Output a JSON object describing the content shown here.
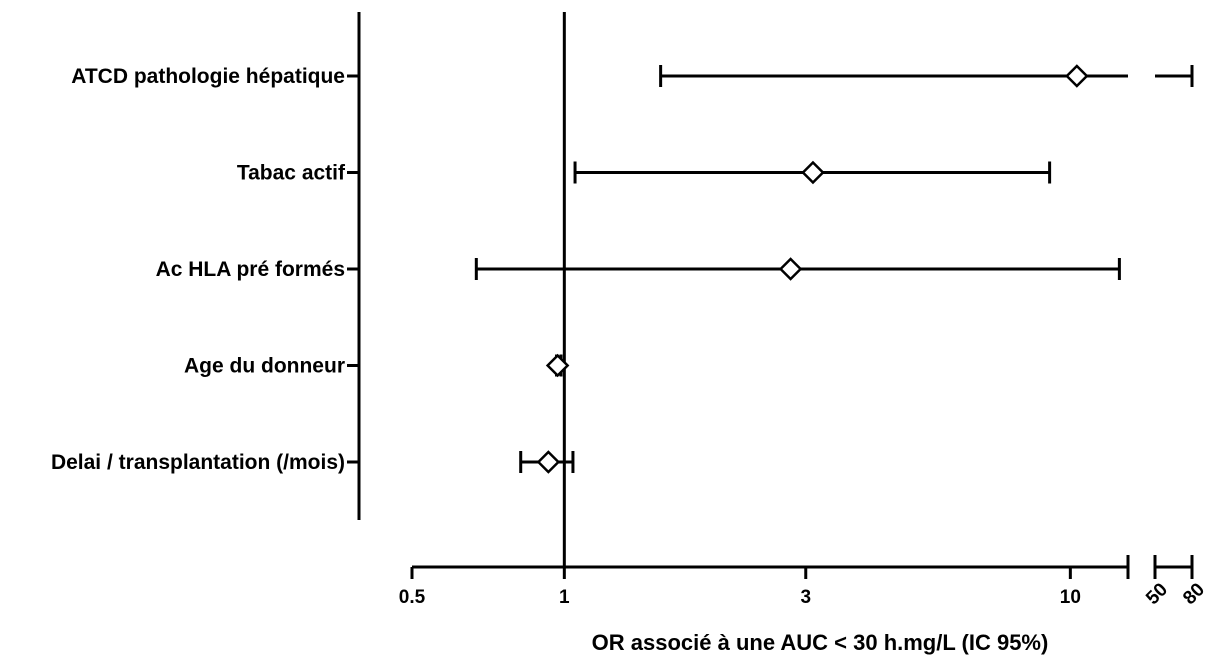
{
  "chart_data": {
    "type": "forest",
    "title": "",
    "xlabel": "OR associé à une AUC < 30 h.mg/L (IC 95%)",
    "ylabel": "",
    "x_scale": "log",
    "x_axis_break": {
      "segment1": [
        0.5,
        13
      ],
      "segment2": [
        50,
        80
      ]
    },
    "x_ticks": [
      "0.5",
      "1",
      "3",
      "10",
      "50",
      "80"
    ],
    "reference_line": 1,
    "grid": false,
    "rows": [
      {
        "label": "ATCD pathologie hépatique",
        "or": 10.3,
        "ci_low": 1.55,
        "ci_high": 80
      },
      {
        "label": "Tabac actif",
        "or": 3.1,
        "ci_low": 1.05,
        "ci_high": 9.1
      },
      {
        "label": "Ac HLA pré formés",
        "or": 2.8,
        "ci_low": 0.67,
        "ci_high": 12.5
      },
      {
        "label": "Age du donneur",
        "or": 0.97,
        "ci_low": 0.965,
        "ci_high": 0.985
      },
      {
        "label": "Delai / transplantation (/mois)",
        "or": 0.93,
        "ci_low": 0.82,
        "ci_high": 1.04
      }
    ]
  }
}
